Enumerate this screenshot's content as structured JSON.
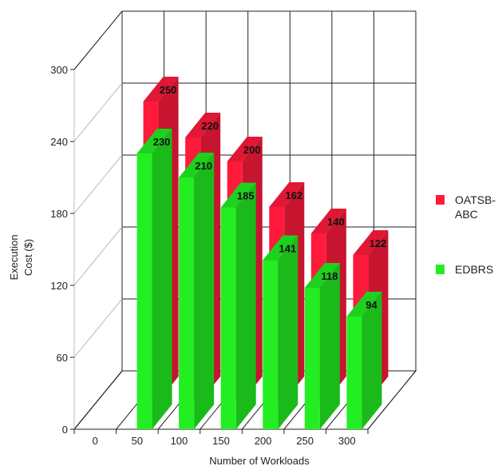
{
  "chart_data": {
    "type": "bar",
    "title": "",
    "xlabel": "Number of Workloads",
    "ylabel": "Execution Cost ($)",
    "ylim": [
      0,
      300
    ],
    "yticks": [
      "0",
      "60",
      "120",
      "180",
      "240",
      "300"
    ],
    "categories": [
      "0",
      "50",
      "100",
      "150",
      "200",
      "250",
      "300"
    ],
    "series": [
      {
        "name": "OATSB-ABC",
        "color": "#ff1a3c",
        "values": [
          null,
          250,
          220,
          200,
          162,
          140,
          122
        ]
      },
      {
        "name": "EDBRS",
        "color": "#22ee22",
        "values": [
          null,
          230,
          210,
          185,
          141,
          118,
          94
        ]
      }
    ],
    "legend_position": "right",
    "grid": true,
    "three_d": true
  }
}
